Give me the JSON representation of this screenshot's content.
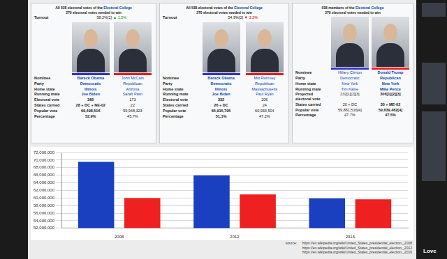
{
  "infoboxes": [
    {
      "header_lines": [
        "All 538 electoral votes of the Electoral College",
        "270 electoral votes needed to win"
      ],
      "turnout": {
        "label": "Turnout",
        "value": "58.2%[1]",
        "change": "▲ 1.5%"
      },
      "colors": [
        "#3333cc",
        "#e81b23"
      ],
      "rows": [
        [
          "Nominee",
          "Barack Obama",
          "John McCain"
        ],
        [
          "Party",
          "Democratic",
          "Republican"
        ],
        [
          "Home state",
          "Illinois",
          "Arizona"
        ],
        [
          "Running mate",
          "Joe Biden",
          "Sarah Palin"
        ],
        [
          "Electoral vote",
          "365",
          "173"
        ],
        [
          "States carried",
          "28 + DC + NE-02",
          "22"
        ],
        [
          "Popular vote",
          "69,498,516",
          "59,948,323"
        ],
        [
          "Percentage",
          "52.9%",
          "45.7%"
        ]
      ]
    },
    {
      "header_lines": [
        "All 538 electoral votes of the Electoral College",
        "270 electoral votes needed to win"
      ],
      "turnout": {
        "label": "Turnout",
        "value": "54.9%[2]",
        "change": "▼ 3.3%"
      },
      "colors": [
        "#3333cc",
        "#e81b23"
      ],
      "rows": [
        [
          "Nominee",
          "Barack Obama",
          "Mitt Romney"
        ],
        [
          "Party",
          "Democratic",
          "Republican"
        ],
        [
          "Home state",
          "Illinois",
          "Massachusetts"
        ],
        [
          "Running mate",
          "Joe Biden",
          "Paul Ryan"
        ],
        [
          "Electoral vote",
          "332",
          "206"
        ],
        [
          "States carried",
          "26 + DC",
          "24"
        ],
        [
          "Popular vote",
          "65,915,795",
          "60,933,504"
        ],
        [
          "Percentage",
          "51.1%",
          "47.2%"
        ]
      ]
    },
    {
      "header_lines": [
        "538 members of the Electoral College",
        "270 electoral votes needed to win"
      ],
      "colors": [
        "#3333cc",
        "#e81b23"
      ],
      "rows": [
        [
          "Nominee",
          "Hillary Clinton",
          "Donald Trump"
        ],
        [
          "Party",
          "Democratic",
          "Republican"
        ],
        [
          "Home state",
          "New York",
          "New York"
        ],
        [
          "Running mate",
          "Tim Kaine",
          "Mike Pence"
        ],
        [
          "Projected electoral vote",
          "232[1][2][3]",
          "306[1][2][3]"
        ],
        [
          "States carried",
          "20 + DC",
          "30 + ME-02"
        ],
        [
          "Popular vote",
          "59,861,516[4]",
          "59,639,462[4]"
        ],
        [
          "Percentage",
          "47.7%",
          "47.5%"
        ]
      ]
    }
  ],
  "chart_data": {
    "type": "bar",
    "categories": [
      "2008",
      "2012",
      "2016"
    ],
    "series": [
      {
        "color": "#1a3fbf",
        "values": [
          69498516,
          65915795,
          59861516
        ]
      },
      {
        "color": "#ee2020",
        "values": [
          59948323,
          60933504,
          59639462
        ]
      }
    ],
    "ylim": [
      52000000,
      72000000
    ],
    "yticks": [
      {
        "value": 52000000,
        "label": "52,000,000"
      },
      {
        "value": 54000000,
        "label": "54,000,000"
      },
      {
        "value": 56000000,
        "label": "56,000,000"
      },
      {
        "value": 58000000,
        "label": "58,000,000"
      },
      {
        "value": 60000000,
        "label": "60,000,000"
      },
      {
        "value": 62000000,
        "label": "62,000,000"
      },
      {
        "value": 64000000,
        "label": "64,000,000"
      },
      {
        "value": 66000000,
        "label": "66,000,000"
      },
      {
        "value": 68000000,
        "label": "68,000,000"
      },
      {
        "value": 70000000,
        "label": "70,000,000"
      },
      {
        "value": 72000000,
        "label": "72,000,000"
      }
    ],
    "grid": true
  },
  "source": {
    "label": "source:",
    "urls": [
      "https://en.wikipedia.org/wiki/United_States_presidential_election,_2008",
      "https://en.wikipedia.org/wiki/United_States_presidential_election,_2012",
      "https://en.wikipedia.org/wiki/United_States_presidential_election,_2016"
    ]
  },
  "sidebar": {
    "text": "Love"
  }
}
